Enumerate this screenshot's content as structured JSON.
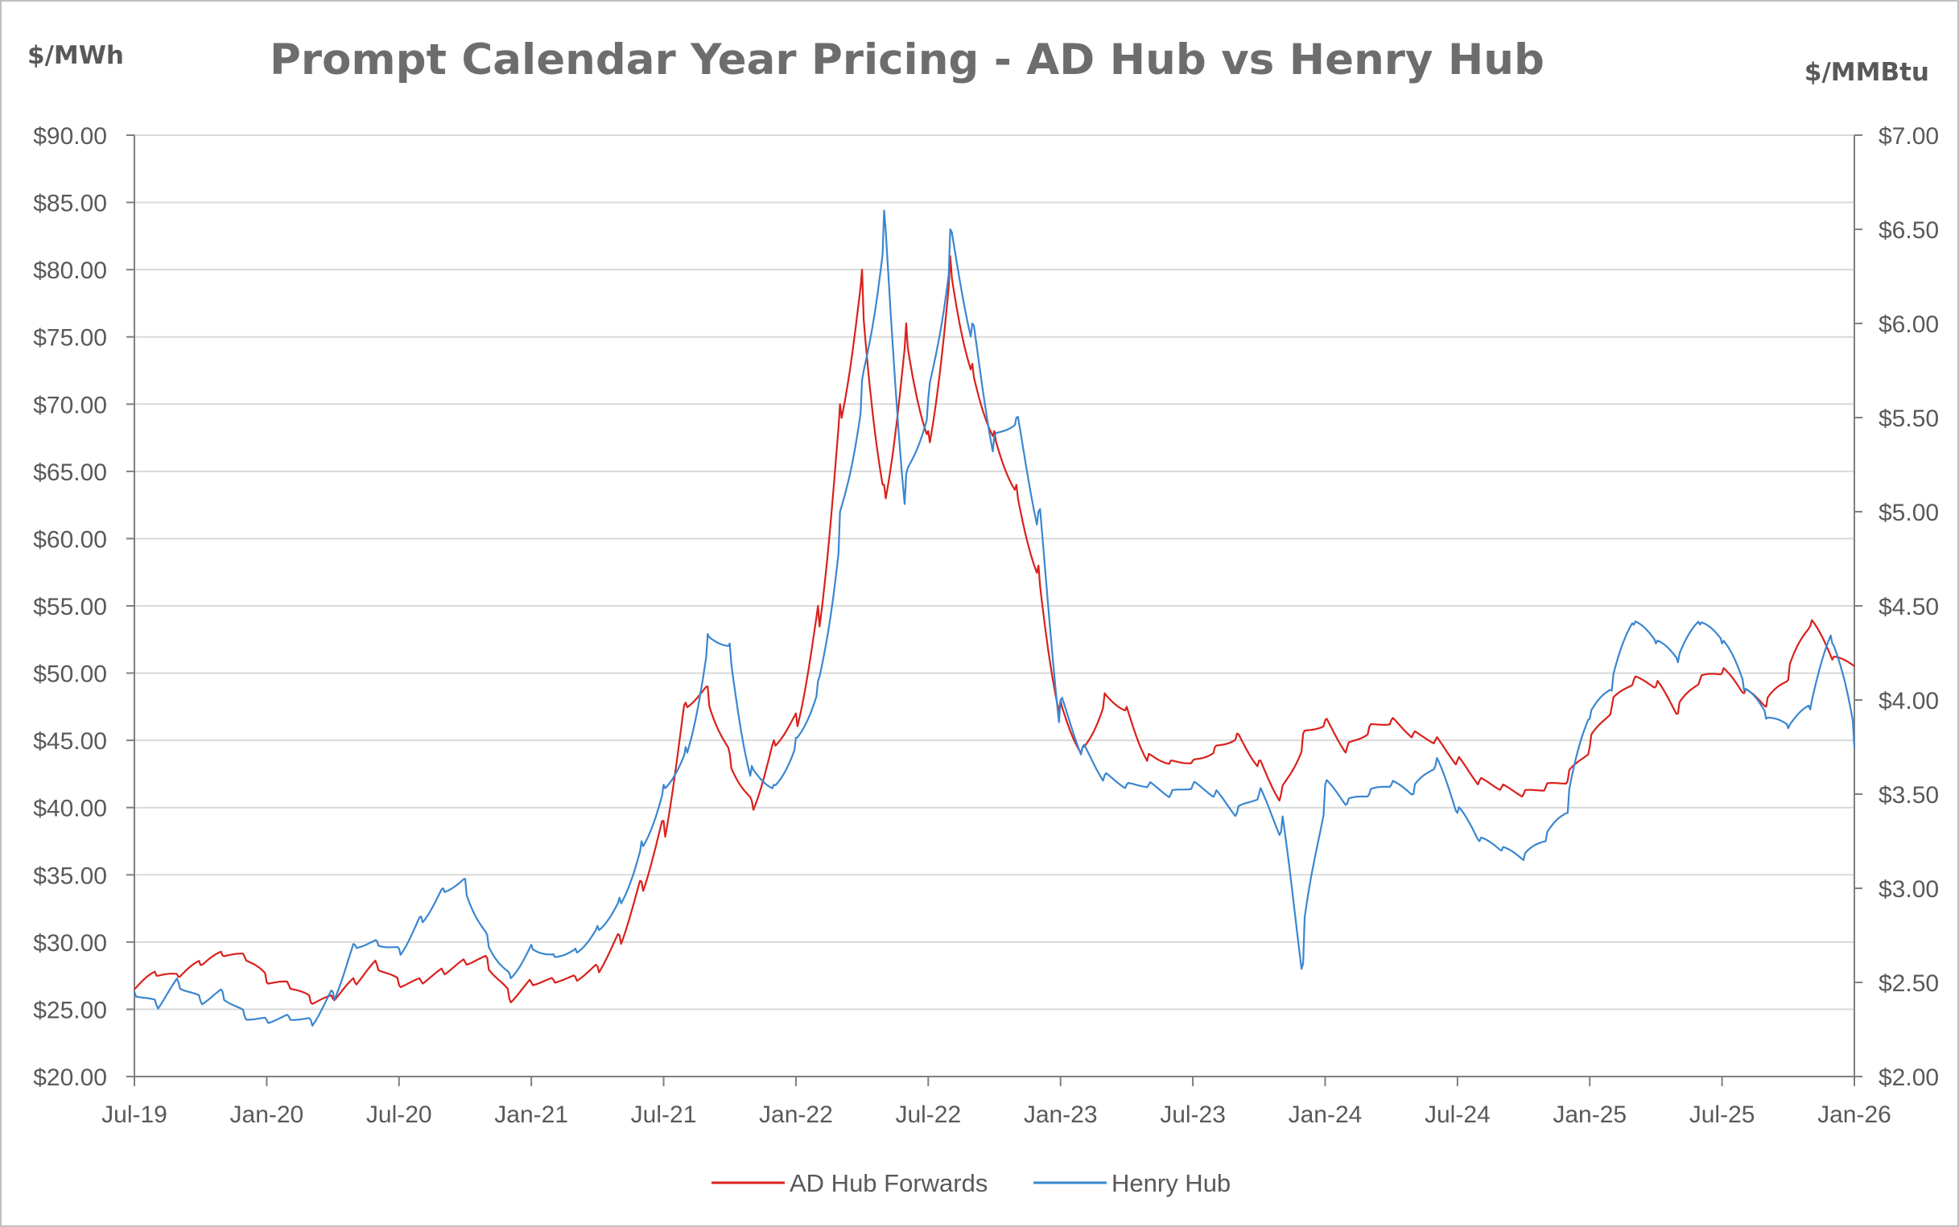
{
  "chart_data": {
    "type": "line",
    "title": "Prompt Calendar Year Pricing - AD Hub vs Henry Hub",
    "y_left_unit": "$/MWh",
    "y_right_unit": "$/MMBtu",
    "x_range": [
      "2019-07",
      "2026-01"
    ],
    "x_ticks": [
      "Jul-19",
      "Jan-20",
      "Jul-20",
      "Jan-21",
      "Jul-21",
      "Jan-22",
      "Jul-22",
      "Jan-23",
      "Jul-23",
      "Jan-24",
      "Jul-24",
      "Jan-25",
      "Jul-25",
      "Jan-26"
    ],
    "y_left_range": [
      20,
      90
    ],
    "y_left_ticks": [
      "$20.00",
      "$25.00",
      "$30.00",
      "$35.00",
      "$40.00",
      "$45.00",
      "$50.00",
      "$55.00",
      "$60.00",
      "$65.00",
      "$70.00",
      "$75.00",
      "$80.00",
      "$85.00",
      "$90.00"
    ],
    "y_right_range": [
      2.0,
      7.0
    ],
    "y_right_ticks": [
      "$2.00",
      "$2.50",
      "$3.00",
      "$3.50",
      "$4.00",
      "$4.50",
      "$5.00",
      "$5.50",
      "$6.00",
      "$6.50",
      "$7.00"
    ],
    "gridlines": true,
    "legend_position": "bottom",
    "series": [
      {
        "name": "AD Hub Forwards",
        "axis": "left",
        "color": "#d9211c",
        "points": [
          [
            "2019-07-01",
            26.5
          ],
          [
            "2019-08-01",
            27.5
          ],
          [
            "2019-09-01",
            27.4
          ],
          [
            "2019-10-01",
            28.3
          ],
          [
            "2019-11-01",
            29.0
          ],
          [
            "2019-12-01",
            28.9
          ],
          [
            "2020-01-01",
            27.0
          ],
          [
            "2020-02-01",
            26.8
          ],
          [
            "2020-03-01",
            25.5
          ],
          [
            "2020-04-01",
            25.8
          ],
          [
            "2020-05-01",
            27.0
          ],
          [
            "2020-06-01",
            28.3
          ],
          [
            "2020-07-01",
            26.8
          ],
          [
            "2020-08-01",
            27.1
          ],
          [
            "2020-09-01",
            27.8
          ],
          [
            "2020-10-01",
            28.5
          ],
          [
            "2020-11-01",
            28.8
          ],
          [
            "2020-12-01",
            25.8
          ],
          [
            "2021-01-01",
            27.0
          ],
          [
            "2021-02-01",
            27.2
          ],
          [
            "2021-03-01",
            27.4
          ],
          [
            "2021-04-01",
            28.2
          ],
          [
            "2021-05-01",
            30.5
          ],
          [
            "2021-06-01",
            34.5
          ],
          [
            "2021-07-01",
            39.0
          ],
          [
            "2021-08-01",
            47.8
          ],
          [
            "2021-09-01",
            49.0
          ],
          [
            "2021-10-01",
            44.0
          ],
          [
            "2021-11-01",
            40.5
          ],
          [
            "2021-12-01",
            45.0
          ],
          [
            "2022-01-01",
            47.0
          ],
          [
            "2022-02-01",
            55.0
          ],
          [
            "2022-03-01",
            70.0
          ],
          [
            "2022-04-01",
            80.0
          ],
          [
            "2022-05-01",
            64.0
          ],
          [
            "2022-06-01",
            76.0
          ],
          [
            "2022-07-01",
            68.0
          ],
          [
            "2022-08-01",
            81.0
          ],
          [
            "2022-09-01",
            73.0
          ],
          [
            "2022-10-01",
            68.0
          ],
          [
            "2022-11-01",
            64.0
          ],
          [
            "2022-12-01",
            58.0
          ],
          [
            "2023-01-01",
            48.0
          ],
          [
            "2023-02-01",
            44.5
          ],
          [
            "2023-03-01",
            48.5
          ],
          [
            "2023-04-01",
            47.5
          ],
          [
            "2023-05-01",
            44.0
          ],
          [
            "2023-06-01",
            43.5
          ],
          [
            "2023-07-01",
            43.5
          ],
          [
            "2023-08-01",
            44.5
          ],
          [
            "2023-09-01",
            45.5
          ],
          [
            "2023-10-01",
            43.5
          ],
          [
            "2023-11-01",
            41.0
          ],
          [
            "2023-12-01",
            45.5
          ],
          [
            "2024-01-01",
            46.5
          ],
          [
            "2024-02-01",
            44.5
          ],
          [
            "2024-03-01",
            46.0
          ],
          [
            "2024-04-01",
            46.5
          ],
          [
            "2024-05-01",
            45.5
          ],
          [
            "2024-06-01",
            45.0
          ],
          [
            "2024-07-01",
            43.5
          ],
          [
            "2024-08-01",
            42.0
          ],
          [
            "2024-09-01",
            41.5
          ],
          [
            "2024-10-01",
            41.0
          ],
          [
            "2024-11-01",
            41.5
          ],
          [
            "2024-12-01",
            42.0
          ],
          [
            "2025-01-01",
            44.5
          ],
          [
            "2025-02-01",
            47.5
          ],
          [
            "2025-03-01",
            49.5
          ],
          [
            "2025-04-01",
            49.0
          ],
          [
            "2025-05-01",
            47.0
          ],
          [
            "2025-06-01",
            49.5
          ],
          [
            "2025-07-01",
            50.0
          ],
          [
            "2025-08-01",
            48.5
          ],
          [
            "2025-09-01",
            47.5
          ],
          [
            "2025-10-01",
            49.5
          ],
          [
            "2025-11-01",
            53.5
          ],
          [
            "2025-12-01",
            51.0
          ],
          [
            "2026-01-01",
            50.5
          ]
        ]
      },
      {
        "name": "Henry Hub",
        "axis": "right",
        "color": "#3a87d0",
        "points": [
          [
            "2019-07-01",
            2.45
          ],
          [
            "2019-08-01",
            2.38
          ],
          [
            "2019-09-01",
            2.5
          ],
          [
            "2019-10-01",
            2.4
          ],
          [
            "2019-11-01",
            2.45
          ],
          [
            "2019-12-01",
            2.32
          ],
          [
            "2020-01-01",
            2.3
          ],
          [
            "2020-02-01",
            2.32
          ],
          [
            "2020-03-01",
            2.3
          ],
          [
            "2020-04-01",
            2.45
          ],
          [
            "2020-05-01",
            2.7
          ],
          [
            "2020-06-01",
            2.72
          ],
          [
            "2020-07-01",
            2.68
          ],
          [
            "2020-08-01",
            2.85
          ],
          [
            "2020-09-01",
            3.0
          ],
          [
            "2020-10-01",
            3.05
          ],
          [
            "2020-11-01",
            2.75
          ],
          [
            "2020-12-01",
            2.55
          ],
          [
            "2021-01-01",
            2.7
          ],
          [
            "2021-02-01",
            2.65
          ],
          [
            "2021-03-01",
            2.68
          ],
          [
            "2021-04-01",
            2.8
          ],
          [
            "2021-05-01",
            2.95
          ],
          [
            "2021-06-01",
            3.25
          ],
          [
            "2021-07-01",
            3.55
          ],
          [
            "2021-08-01",
            3.75
          ],
          [
            "2021-09-01",
            4.35
          ],
          [
            "2021-10-01",
            4.3
          ],
          [
            "2021-11-01",
            3.65
          ],
          [
            "2021-12-01",
            3.55
          ],
          [
            "2022-01-01",
            3.8
          ],
          [
            "2022-02-01",
            4.1
          ],
          [
            "2022-03-01",
            5.0
          ],
          [
            "2022-04-01",
            5.7
          ],
          [
            "2022-05-01",
            6.6
          ],
          [
            "2022-06-01",
            5.2
          ],
          [
            "2022-07-01",
            5.6
          ],
          [
            "2022-08-01",
            6.5
          ],
          [
            "2022-09-01",
            6.0
          ],
          [
            "2022-10-01",
            5.4
          ],
          [
            "2022-11-01",
            5.5
          ],
          [
            "2022-12-01",
            5.0
          ],
          [
            "2023-01-01",
            4.0
          ],
          [
            "2023-02-01",
            3.75
          ],
          [
            "2023-03-01",
            3.6
          ],
          [
            "2023-04-01",
            3.55
          ],
          [
            "2023-05-01",
            3.55
          ],
          [
            "2023-06-01",
            3.5
          ],
          [
            "2023-07-01",
            3.55
          ],
          [
            "2023-08-01",
            3.5
          ],
          [
            "2023-09-01",
            3.4
          ],
          [
            "2023-10-01",
            3.5
          ],
          [
            "2023-11-01",
            3.3
          ],
          [
            "2023-12-01",
            2.6
          ],
          [
            "2024-01-01",
            3.55
          ],
          [
            "2024-02-01",
            3.45
          ],
          [
            "2024-03-01",
            3.5
          ],
          [
            "2024-04-01",
            3.55
          ],
          [
            "2024-05-01",
            3.5
          ],
          [
            "2024-06-01",
            3.65
          ],
          [
            "2024-07-01",
            3.4
          ],
          [
            "2024-08-01",
            3.25
          ],
          [
            "2024-09-01",
            3.2
          ],
          [
            "2024-10-01",
            3.15
          ],
          [
            "2024-11-01",
            3.25
          ],
          [
            "2024-12-01",
            3.4
          ],
          [
            "2025-01-01",
            3.9
          ],
          [
            "2025-02-01",
            4.05
          ],
          [
            "2025-03-01",
            4.4
          ],
          [
            "2025-04-01",
            4.3
          ],
          [
            "2025-05-01",
            4.2
          ],
          [
            "2025-06-01",
            4.4
          ],
          [
            "2025-07-01",
            4.3
          ],
          [
            "2025-08-01",
            4.05
          ],
          [
            "2025-09-01",
            3.9
          ],
          [
            "2025-10-01",
            3.85
          ],
          [
            "2025-11-01",
            3.95
          ],
          [
            "2025-12-01",
            4.3
          ],
          [
            "2026-01-01",
            3.75
          ]
        ]
      }
    ]
  }
}
